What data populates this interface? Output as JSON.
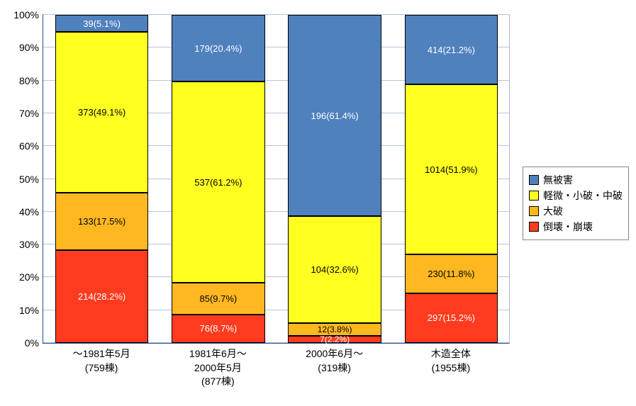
{
  "chart": {
    "type": "stacked-bar-100",
    "y": {
      "min": 0,
      "max": 100,
      "step": 10,
      "suffix": "%"
    },
    "background_color": "#ffffff",
    "grid_color": "#b8c4da",
    "axis_color": "#1f4e8c",
    "font_size_tick": 14,
    "font_size_label": 13,
    "categories": [
      {
        "line1": "～1981年5月",
        "line2": "(759棟)"
      },
      {
        "line1": "1981年6月～",
        "line2": "2000年5月",
        "line3": "(877棟)"
      },
      {
        "line1": "2000年6月～",
        "line2": "(319棟)"
      },
      {
        "line1": "木造全体",
        "line2": "(1955棟)"
      }
    ],
    "series": [
      {
        "key": "collapse",
        "name": "倒壊・崩壊",
        "color": "#ff3b1f",
        "text": "dark"
      },
      {
        "key": "severe",
        "name": "大破",
        "color": "#ffb820",
        "text": "light"
      },
      {
        "key": "moderate",
        "name": "軽微・小破・中破",
        "color": "#ffff20",
        "text": "light"
      },
      {
        "key": "none",
        "name": "無被害",
        "color": "#4f81bd",
        "text": "dark"
      }
    ],
    "data": [
      {
        "collapse": {
          "count": 214,
          "pct": 28.2
        },
        "severe": {
          "count": 133,
          "pct": 17.5
        },
        "moderate": {
          "count": 373,
          "pct": 49.1
        },
        "none": {
          "count": 39,
          "pct": 5.1
        }
      },
      {
        "collapse": {
          "count": 76,
          "pct": 8.7
        },
        "severe": {
          "count": 85,
          "pct": 9.7
        },
        "moderate": {
          "count": 537,
          "pct": 61.2
        },
        "none": {
          "count": 179,
          "pct": 20.4
        }
      },
      {
        "collapse": {
          "count": 7,
          "pct": 2.2
        },
        "severe": {
          "count": 12,
          "pct": 3.8
        },
        "moderate": {
          "count": 104,
          "pct": 32.6
        },
        "none": {
          "count": 196,
          "pct": 61.4
        }
      },
      {
        "collapse": {
          "count": 297,
          "pct": 15.2
        },
        "severe": {
          "count": 230,
          "pct": 11.8
        },
        "moderate": {
          "count": 1014,
          "pct": 51.9
        },
        "none": {
          "count": 414,
          "pct": 21.2
        }
      }
    ],
    "legend_order": [
      "none",
      "moderate",
      "severe",
      "collapse"
    ]
  }
}
